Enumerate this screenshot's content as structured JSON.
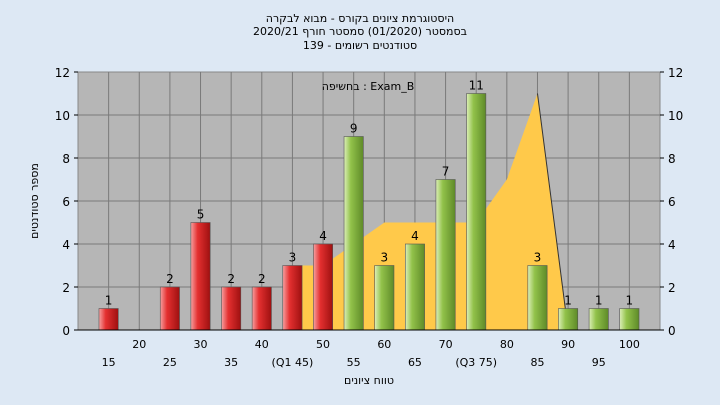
{
  "chart_data": {
    "type": "bar",
    "title_lines": [
      "היסטוגרמת ציונים בקורס - מבוא לבקרה",
      "בסמסטר  (01/2020)  סמסטר חורף  2020/21",
      "סטודנטים רשומים - 139"
    ],
    "annotation": "בחשיפה : Exam_B",
    "xlabel": "טווח ציונים",
    "ylabel": "מספר סטודנטים",
    "ylim": [
      0,
      12
    ],
    "yticks": [
      "0",
      "2",
      "4",
      "6",
      "8",
      "10",
      "12"
    ],
    "grid": true,
    "categories": [
      "15",
      "20",
      "25",
      "30",
      "35",
      "40",
      "45",
      "50",
      "55",
      "60",
      "65",
      "70",
      "75",
      "80",
      "85",
      "90",
      "95",
      "100"
    ],
    "x_tick_labels": [
      "15",
      "20",
      "25",
      "30",
      "35",
      "40",
      "(Q1 45)",
      "50",
      "55",
      "60",
      "65",
      "70",
      "(Q3 75)",
      "80",
      "85",
      "90",
      "95",
      "100"
    ],
    "values": [
      1,
      0,
      2,
      5,
      2,
      2,
      3,
      4,
      9,
      3,
      4,
      7,
      11,
      0,
      3,
      1,
      1,
      1
    ],
    "value_labels": [
      "1",
      "",
      "2",
      "5",
      "2",
      "2",
      "3",
      "4",
      "9",
      "3",
      "4",
      "7",
      "11",
      "",
      "3",
      "1",
      "1",
      "1"
    ],
    "bar_groups": [
      "red",
      "red",
      "red",
      "red",
      "red",
      "red",
      "red",
      "red",
      "green",
      "green",
      "green",
      "green",
      "green",
      "green",
      "green",
      "green",
      "green",
      "green"
    ],
    "iqr_band": [
      3,
      3,
      4,
      5,
      5,
      5,
      5,
      7,
      11,
      0
    ],
    "colors": {
      "red": "#e02828",
      "green": "#8cc63f",
      "band": "#ffc94a",
      "plot_bg": "#b6b6b6",
      "page_bg": "#dde8f4",
      "grid": "#7a7a7a"
    }
  }
}
